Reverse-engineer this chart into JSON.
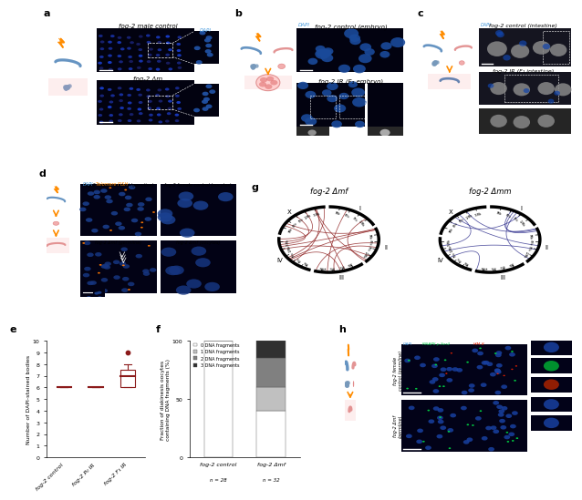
{
  "panel_e": {
    "groups": [
      "fog-2 control",
      "fog-2 P₀ IR",
      "fog-2 F₁ IR"
    ],
    "medians": [
      6,
      6,
      7
    ],
    "q1": [
      6,
      6,
      6
    ],
    "q3": [
      6,
      6,
      7.5
    ],
    "whisker_low": [
      6,
      6,
      6
    ],
    "whisker_high": [
      6,
      6,
      8
    ],
    "outliers_x": [
      2
    ],
    "outliers_y": [
      9
    ],
    "ylabel": "Number of DAPI-stained bodies",
    "ylim": [
      0,
      10
    ],
    "yticks": [
      0,
      1,
      2,
      3,
      4,
      5,
      6,
      7,
      8,
      9,
      10
    ],
    "color": "#8B1A1A"
  },
  "panel_f": {
    "bar0": [
      100,
      0,
      0,
      0
    ],
    "bar1": [
      40,
      20,
      25,
      15
    ],
    "colors": [
      "#ffffff",
      "#c0c0c0",
      "#808080",
      "#303030"
    ],
    "legend_labels": [
      "0 DNA fragments",
      "1 DNA fragments",
      "2 DNA fragments",
      "3 DNA fragments"
    ],
    "xlabel0": "fog-2 control",
    "xlabel1": "fog-2 Δmf",
    "n0": "n = 28",
    "n1": "n = 32",
    "ylabel": "Fraction of diakinesis oocytes\ncontaining DNA fragments (%)",
    "ylim": [
      0,
      100
    ],
    "yticks": [
      0,
      50,
      100
    ]
  },
  "figure": {
    "bg_color": "#ffffff"
  }
}
